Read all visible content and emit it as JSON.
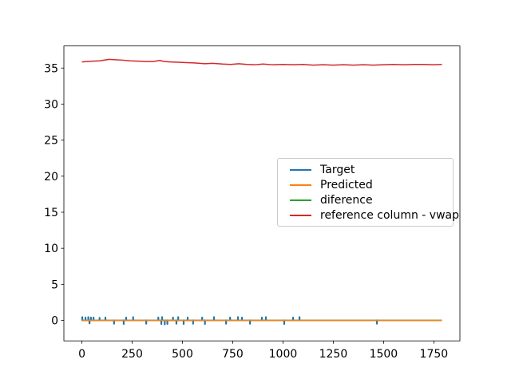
{
  "figure": {
    "background": "#ffffff",
    "title": ""
  },
  "chart_data": {
    "type": "line",
    "title": "",
    "xlabel": "",
    "ylabel": "",
    "xlim": [
      -89.5,
      1879.5
    ],
    "ylim": [
      -2.84,
      38.06
    ],
    "x_ticks": [
      0,
      250,
      500,
      750,
      1000,
      1250,
      1500,
      1750
    ],
    "y_ticks": [
      0,
      5,
      10,
      15,
      20,
      25,
      30,
      35
    ],
    "grid": false,
    "axes_color": "#000000",
    "legend": {
      "position": "center right",
      "border_color": "#cccccc",
      "background": "#ffffff"
    },
    "series": [
      {
        "name": "Target",
        "color": "#1f77b4",
        "style": "baseline-with-spikes",
        "baseline": 0,
        "x_start": 0,
        "x_end": 1790,
        "spikes": [
          [
            2,
            0.45
          ],
          [
            18,
            0.4
          ],
          [
            32,
            0.45
          ],
          [
            38,
            -0.4
          ],
          [
            45,
            0.4
          ],
          [
            58,
            0.4
          ],
          [
            88,
            0.35
          ],
          [
            117,
            0.4
          ],
          [
            160,
            -0.45
          ],
          [
            208,
            -0.5
          ],
          [
            220,
            0.4
          ],
          [
            255,
            0.45
          ],
          [
            320,
            -0.45
          ],
          [
            380,
            0.4
          ],
          [
            395,
            -0.5
          ],
          [
            399,
            0.45
          ],
          [
            412,
            -0.55
          ],
          [
            425,
            -0.5
          ],
          [
            453,
            0.4
          ],
          [
            470,
            -0.45
          ],
          [
            479,
            0.45
          ],
          [
            506,
            -0.5
          ],
          [
            526,
            0.4
          ],
          [
            553,
            -0.45
          ],
          [
            598,
            0.4
          ],
          [
            612,
            -0.5
          ],
          [
            657,
            0.45
          ],
          [
            717,
            -0.45
          ],
          [
            737,
            0.4
          ],
          [
            776,
            0.45
          ],
          [
            796,
            0.4
          ],
          [
            836,
            -0.45
          ],
          [
            895,
            0.4
          ],
          [
            915,
            0.45
          ],
          [
            1006,
            -0.5
          ],
          [
            1050,
            0.4
          ],
          [
            1082,
            0.45
          ],
          [
            1467,
            -0.45
          ]
        ]
      },
      {
        "name": "Predicted",
        "color": "#ff7f0e",
        "style": "constant",
        "value": 0,
        "x_start": 0,
        "x_end": 1790
      },
      {
        "name": "diference",
        "color": "#2ca02c",
        "style": "constant",
        "value": 0,
        "x_start": 0,
        "x_end": 1790
      },
      {
        "name": "reference column - vwap",
        "color": "#d62728",
        "style": "line",
        "points": [
          [
            0,
            35.85
          ],
          [
            25,
            35.9
          ],
          [
            55,
            35.95
          ],
          [
            90,
            36.0
          ],
          [
            135,
            36.2
          ],
          [
            165,
            36.15
          ],
          [
            200,
            36.1
          ],
          [
            240,
            36.0
          ],
          [
            280,
            35.95
          ],
          [
            320,
            35.9
          ],
          [
            355,
            35.9
          ],
          [
            387,
            36.05
          ],
          [
            410,
            35.9
          ],
          [
            440,
            35.85
          ],
          [
            480,
            35.8
          ],
          [
            520,
            35.75
          ],
          [
            560,
            35.7
          ],
          [
            610,
            35.6
          ],
          [
            650,
            35.65
          ],
          [
            700,
            35.55
          ],
          [
            740,
            35.5
          ],
          [
            780,
            35.6
          ],
          [
            820,
            35.5
          ],
          [
            860,
            35.45
          ],
          [
            900,
            35.55
          ],
          [
            950,
            35.45
          ],
          [
            1000,
            35.5
          ],
          [
            1050,
            35.45
          ],
          [
            1100,
            35.5
          ],
          [
            1150,
            35.4
          ],
          [
            1200,
            35.45
          ],
          [
            1250,
            35.4
          ],
          [
            1300,
            35.45
          ],
          [
            1350,
            35.4
          ],
          [
            1400,
            35.45
          ],
          [
            1450,
            35.4
          ],
          [
            1500,
            35.45
          ],
          [
            1550,
            35.5
          ],
          [
            1600,
            35.45
          ],
          [
            1650,
            35.5
          ],
          [
            1700,
            35.5
          ],
          [
            1750,
            35.45
          ],
          [
            1790,
            35.5
          ]
        ]
      }
    ]
  }
}
